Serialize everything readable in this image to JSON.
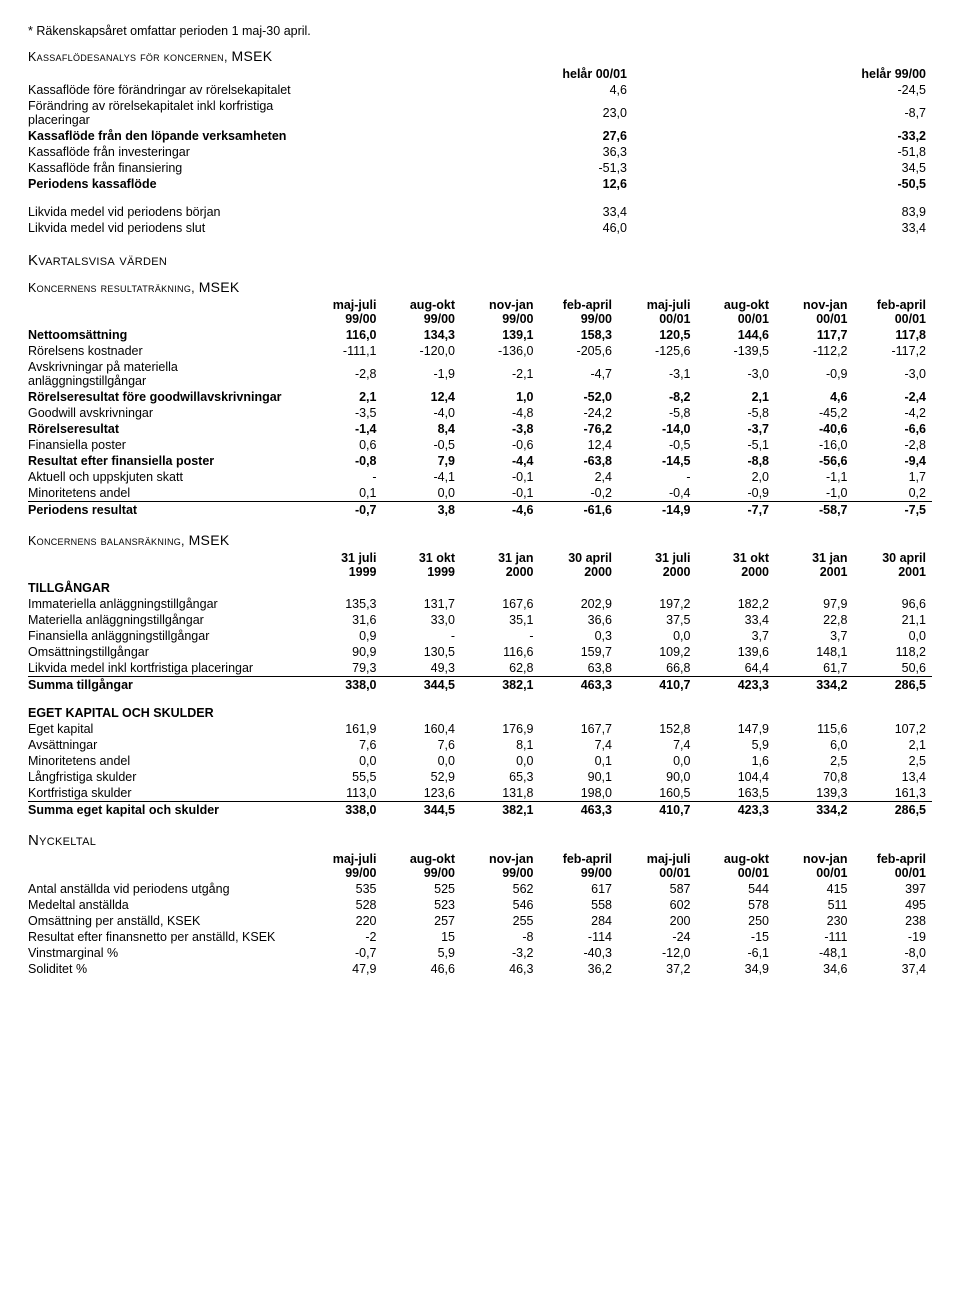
{
  "note": "* Räkenskapsåret omfattar perioden 1 maj-30 april.",
  "cashflow": {
    "title_a": "Kassaflödesanalys för koncernen, ",
    "title_b": "MSEK",
    "headers": [
      "helår 00/01",
      "helår 99/00"
    ],
    "rows": [
      {
        "label": "Kassaflöde före förändringar av rörelsekapitalet",
        "v": [
          "4,6",
          "-24,5"
        ],
        "bold": false
      },
      {
        "label": "Förändring av rörelsekapitalet inkl korfristiga placeringar",
        "v": [
          "23,0",
          "-8,7"
        ],
        "bold": false
      },
      {
        "label": "Kassaflöde från den löpande verksamheten",
        "v": [
          "27,6",
          "-33,2"
        ],
        "bold": true
      },
      {
        "label": "Kassaflöde från investeringar",
        "v": [
          "36,3",
          "-51,8"
        ],
        "bold": false
      },
      {
        "label": "Kassaflöde från finansiering",
        "v": [
          "-51,3",
          "34,5"
        ],
        "bold": false
      },
      {
        "label": "Periodens kassaflöde",
        "v": [
          "12,6",
          "-50,5"
        ],
        "bold": true
      }
    ],
    "rows2": [
      {
        "label": "Likvida medel vid periodens början",
        "v": [
          "33,4",
          "83,9"
        ]
      },
      {
        "label": "Likvida medel vid periodens slut",
        "v": [
          "46,0",
          "33,4"
        ]
      }
    ]
  },
  "kvartal_title": "Kvartalsvisa värden",
  "income": {
    "title_a": "Koncernens resultaträkning, ",
    "title_b": "MSEK",
    "headers": [
      "maj-juli 99/00",
      "aug-okt 99/00",
      "nov-jan 99/00",
      "feb-april 99/00",
      "maj-juli 00/01",
      "aug-okt 00/01",
      "nov-jan 00/01",
      "feb-april 00/01"
    ],
    "rows": [
      {
        "label": "Nettoomsättning",
        "v": [
          "116,0",
          "134,3",
          "139,1",
          "158,3",
          "120,5",
          "144,6",
          "117,7",
          "117,8"
        ],
        "bold": true
      },
      {
        "label": "Rörelsens kostnader",
        "v": [
          "-111,1",
          "-120,0",
          "-136,0",
          "-205,6",
          "-125,6",
          "-139,5",
          "-112,2",
          "-117,2"
        ]
      },
      {
        "label": "Avskrivningar på materiella anläggningstillgångar",
        "v": [
          "-2,8",
          "-1,9",
          "-2,1",
          "-4,7",
          "-3,1",
          "-3,0",
          "-0,9",
          "-3,0"
        ]
      },
      {
        "label": "Rörelseresultat före goodwillavskrivningar",
        "v": [
          "2,1",
          "12,4",
          "1,0",
          "-52,0",
          "-8,2",
          "2,1",
          "4,6",
          "-2,4"
        ],
        "bold": true
      },
      {
        "label": "Goodwill avskrivningar",
        "v": [
          "-3,5",
          "-4,0",
          "-4,8",
          "-24,2",
          "-5,8",
          "-5,8",
          "-45,2",
          "-4,2"
        ]
      },
      {
        "label": "Rörelseresultat",
        "v": [
          "-1,4",
          "8,4",
          "-3,8",
          "-76,2",
          "-14,0",
          "-3,7",
          "-40,6",
          "-6,6"
        ],
        "bold": true
      },
      {
        "label": "Finansiella poster",
        "v": [
          "0,6",
          "-0,5",
          "-0,6",
          "12,4",
          "-0,5",
          "-5,1",
          "-16,0",
          "-2,8"
        ]
      },
      {
        "label": "Resultat efter finansiella poster",
        "v": [
          "-0,8",
          "7,9",
          "-4,4",
          "-63,8",
          "-14,5",
          "-8,8",
          "-56,6",
          "-9,4"
        ],
        "bold": true
      },
      {
        "label": "Aktuell och uppskjuten skatt",
        "v": [
          "-",
          "-4,1",
          "-0,1",
          "2,4",
          "-",
          "2,0",
          "-1,1",
          "1,7"
        ]
      },
      {
        "label": "Minoritetens andel",
        "v": [
          "0,1",
          "0,0",
          "-0,1",
          "-0,2",
          "-0,4",
          "-0,9",
          "-1,0",
          "0,2"
        ]
      },
      {
        "label": "Periodens resultat",
        "v": [
          "-0,7",
          "3,8",
          "-4,6",
          "-61,6",
          "-14,9",
          "-7,7",
          "-58,7",
          "-7,5"
        ],
        "bold": true,
        "sum": true
      }
    ]
  },
  "balance": {
    "title_a": "Koncernens balansräkning, ",
    "title_b": "MSEK",
    "headers": [
      "31 juli 1999",
      "31 okt 1999",
      "31 jan 2000",
      "30 april 2000",
      "31 juli 2000",
      "31 okt 2000",
      "31 jan 2001",
      "30 april 2001"
    ],
    "assets_label": "TILLGÅNGAR",
    "assets": [
      {
        "label": "Immateriella anläggningstillgångar",
        "v": [
          "135,3",
          "131,7",
          "167,6",
          "202,9",
          "197,2",
          "182,2",
          "97,9",
          "96,6"
        ]
      },
      {
        "label": "Materiella anläggningstillgångar",
        "v": [
          "31,6",
          "33,0",
          "35,1",
          "36,6",
          "37,5",
          "33,4",
          "22,8",
          "21,1"
        ]
      },
      {
        "label": "Finansiella anläggningstillgångar",
        "v": [
          "0,9",
          "-",
          "-",
          "0,3",
          "0,0",
          "3,7",
          "3,7",
          "0,0"
        ]
      },
      {
        "label": "Omsättningstillgångar",
        "v": [
          "90,9",
          "130,5",
          "116,6",
          "159,7",
          "109,2",
          "139,6",
          "148,1",
          "118,2"
        ]
      },
      {
        "label": "Likvida medel inkl kortfristiga placeringar",
        "v": [
          "79,3",
          "49,3",
          "62,8",
          "63,8",
          "66,8",
          "64,4",
          "61,7",
          "50,6"
        ]
      }
    ],
    "assets_sum": {
      "label": "Summa tillgångar",
      "v": [
        "338,0",
        "344,5",
        "382,1",
        "463,3",
        "410,7",
        "423,3",
        "334,2",
        "286,5"
      ]
    },
    "equity_label": "EGET KAPITAL OCH SKULDER",
    "equity": [
      {
        "label": "Eget kapital",
        "v": [
          "161,9",
          "160,4",
          "176,9",
          "167,7",
          "152,8",
          "147,9",
          "115,6",
          "107,2"
        ]
      },
      {
        "label": "Avsättningar",
        "v": [
          "7,6",
          "7,6",
          "8,1",
          "7,4",
          "7,4",
          "5,9",
          "6,0",
          "2,1"
        ]
      },
      {
        "label": "Minoritetens andel",
        "v": [
          "0,0",
          "0,0",
          "0,0",
          "0,1",
          "0,0",
          "1,6",
          "2,5",
          "2,5"
        ]
      },
      {
        "label": "Långfristiga skulder",
        "v": [
          "55,5",
          "52,9",
          "65,3",
          "90,1",
          "90,0",
          "104,4",
          "70,8",
          "13,4"
        ]
      },
      {
        "label": "Kortfristiga skulder",
        "v": [
          "113,0",
          "123,6",
          "131,8",
          "198,0",
          "160,5",
          "163,5",
          "139,3",
          "161,3"
        ]
      }
    ],
    "equity_sum": {
      "label": "Summa eget kapital och skulder",
      "v": [
        "338,0",
        "344,5",
        "382,1",
        "463,3",
        "410,7",
        "423,3",
        "334,2",
        "286,5"
      ]
    }
  },
  "ratios": {
    "title": "Nyckeltal",
    "headers": [
      "maj-juli 99/00",
      "aug-okt 99/00",
      "nov-jan 99/00",
      "feb-april 99/00",
      "maj-juli 00/01",
      "aug-okt 00/01",
      "nov-jan 00/01",
      "feb-april 00/01"
    ],
    "rows": [
      {
        "label": "Antal anställda vid periodens utgång",
        "v": [
          "535",
          "525",
          "562",
          "617",
          "587",
          "544",
          "415",
          "397"
        ]
      },
      {
        "label": "Medeltal anställda",
        "v": [
          "528",
          "523",
          "546",
          "558",
          "602",
          "578",
          "511",
          "495"
        ]
      },
      {
        "label": "Omsättning per anställd, KSEK",
        "v": [
          "220",
          "257",
          "255",
          "284",
          "200",
          "250",
          "230",
          "238"
        ]
      },
      {
        "label": "Resultat efter finansnetto per anställd, KSEK",
        "v": [
          "-2",
          "15",
          "-8",
          "-114",
          "-24",
          "-15",
          "-111",
          "-19"
        ]
      },
      {
        "label": "Vinstmarginal %",
        "v": [
          "-0,7",
          "5,9",
          "-3,2",
          "-40,3",
          "-12,0",
          "-6,1",
          "-48,1",
          "-8,0"
        ]
      },
      {
        "label": "Soliditet %",
        "v": [
          "47,9",
          "46,6",
          "46,3",
          "36,2",
          "37,2",
          "34,9",
          "34,6",
          "37,4"
        ]
      }
    ]
  }
}
